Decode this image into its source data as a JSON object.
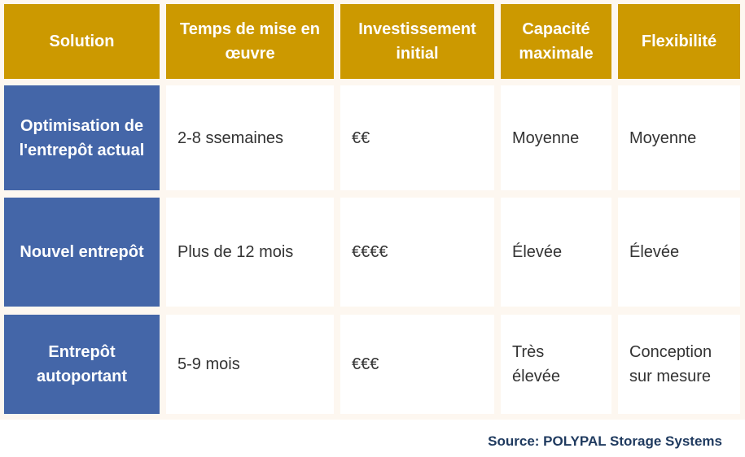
{
  "table": {
    "headers": [
      "Solution",
      "Temps de mise en œuvre",
      "Investissement initial",
      "Capacité maximale",
      "Flexibilité"
    ],
    "rows": [
      {
        "solution": "Optimisation de l'entrepôt actual",
        "temps": "2-8 ssemaines",
        "investissement": "€€",
        "capacite": "Moyenne",
        "flexibilite": "Moyenne"
      },
      {
        "solution": "Nouvel entrepôt",
        "temps": "Plus de 12 mois",
        "investissement": "€€€€",
        "capacite": "Élevée",
        "flexibilite": "Élevée"
      },
      {
        "solution": "Entrepôt autoportant",
        "temps": "5-9 mois",
        "investissement": "€€€",
        "capacite": "Très élevée",
        "flexibilite": "Conception sur mesure"
      }
    ]
  },
  "source": "Source: POLYPAL Storage Systems",
  "colors": {
    "header_gold": "#cc9900",
    "row_header_blue": "#4466a8",
    "source_text": "#1f3a5f"
  }
}
